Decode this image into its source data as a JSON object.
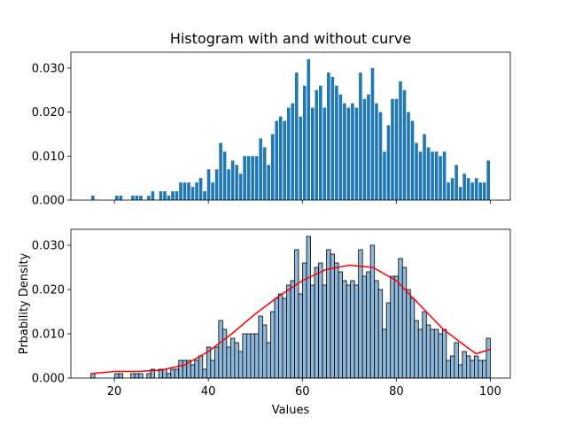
{
  "chart_data": [
    {
      "type": "histogram",
      "title": "Histogram with and without curve",
      "color": "#1f77b4",
      "bins": [
        15,
        15.85,
        16.7,
        17.55,
        18.4,
        19.25,
        20.1,
        20.95,
        21.8,
        22.65,
        23.5,
        24.35,
        25.2,
        26.05,
        26.9,
        27.75,
        28.6,
        29.45,
        30.3,
        31.15,
        32,
        32.85,
        33.7,
        34.55,
        35.4,
        36.25,
        37.1,
        37.95,
        38.8,
        39.65,
        40.5,
        41.35,
        42.2,
        43.05,
        43.9,
        44.75,
        45.6,
        46.45,
        47.3,
        48.15,
        49,
        49.85,
        50.7,
        51.55,
        52.4,
        53.25,
        54.1,
        54.95,
        55.8,
        56.65,
        57.5,
        58.35,
        59.2,
        60.05,
        60.9,
        61.75,
        62.6,
        63.45,
        64.3,
        65.15,
        66,
        66.85,
        67.7,
        68.55,
        69.4,
        70.25,
        71.1,
        71.95,
        72.8,
        73.65,
        74.5,
        75.35,
        76.2,
        77.05,
        77.9,
        78.75,
        79.6,
        80.45,
        81.3,
        82.15,
        83,
        83.85,
        84.7,
        85.55,
        86.4,
        87.25,
        88.1,
        88.95,
        89.8,
        90.65,
        91.5,
        92.35,
        93.2,
        94.05,
        94.9,
        95.75,
        96.6,
        97.45,
        98.3,
        99.15,
        100
      ],
      "values": [
        0.001,
        0,
        0,
        0,
        0,
        0,
        0.001,
        0.001,
        0,
        0,
        0.001,
        0.001,
        0.001,
        0,
        0.001,
        0.002,
        0,
        0.002,
        0.002,
        0.001,
        0.002,
        0.002,
        0.004,
        0.004,
        0.004,
        0.003,
        0.004,
        0.005,
        0.002,
        0.007,
        0.004,
        0.007,
        0.013,
        0.011,
        0.007,
        0.009,
        0.008,
        0.006,
        0.01,
        0.01,
        0.01,
        0.01,
        0.014,
        0.012,
        0.008,
        0.015,
        0.018,
        0.019,
        0.018,
        0.021,
        0.022,
        0.029,
        0.019,
        0.026,
        0.032,
        0.021,
        0.025,
        0.026,
        0.021,
        0.029,
        0.028,
        0.026,
        0.024,
        0.022,
        0.021,
        0.022,
        0.021,
        0.029,
        0.023,
        0.024,
        0.03,
        0.022,
        0.02,
        0.011,
        0.017,
        0.023,
        0.023,
        0.027,
        0.025,
        0.02,
        0.018,
        0.013,
        0.011,
        0.015,
        0.012,
        0.011,
        0.011,
        0.01,
        0.011,
        0.004,
        0.005,
        0.008,
        0.003,
        0.006,
        0.005,
        0.004,
        0.005,
        0.004,
        0.004,
        0.009
      ],
      "xlim": [
        10.75,
        104.25
      ],
      "ylim": [
        0,
        0.0336
      ],
      "yticks": [
        {
          "value": 0,
          "label": "0.000"
        },
        {
          "value": 0.01,
          "label": "0.010"
        },
        {
          "value": 0.02,
          "label": "0.020"
        },
        {
          "value": 0.03,
          "label": "0.030"
        }
      ]
    },
    {
      "type": "histogram",
      "xlabel": "Values",
      "ylabel": "Prbability Density",
      "color": "#8fb9dc",
      "edgecolor": "#000000",
      "bins": [
        15,
        15.85,
        16.7,
        17.55,
        18.4,
        19.25,
        20.1,
        20.95,
        21.8,
        22.65,
        23.5,
        24.35,
        25.2,
        26.05,
        26.9,
        27.75,
        28.6,
        29.45,
        30.3,
        31.15,
        32,
        32.85,
        33.7,
        34.55,
        35.4,
        36.25,
        37.1,
        37.95,
        38.8,
        39.65,
        40.5,
        41.35,
        42.2,
        43.05,
        43.9,
        44.75,
        45.6,
        46.45,
        47.3,
        48.15,
        49,
        49.85,
        50.7,
        51.55,
        52.4,
        53.25,
        54.1,
        54.95,
        55.8,
        56.65,
        57.5,
        58.35,
        59.2,
        60.05,
        60.9,
        61.75,
        62.6,
        63.45,
        64.3,
        65.15,
        66,
        66.85,
        67.7,
        68.55,
        69.4,
        70.25,
        71.1,
        71.95,
        72.8,
        73.65,
        74.5,
        75.35,
        76.2,
        77.05,
        77.9,
        78.75,
        79.6,
        80.45,
        81.3,
        82.15,
        83,
        83.85,
        84.7,
        85.55,
        86.4,
        87.25,
        88.1,
        88.95,
        89.8,
        90.65,
        91.5,
        92.35,
        93.2,
        94.05,
        94.9,
        95.75,
        96.6,
        97.45,
        98.3,
        99.15,
        100
      ],
      "values": [
        0.001,
        0,
        0,
        0,
        0,
        0,
        0.001,
        0.001,
        0,
        0,
        0.001,
        0.001,
        0.001,
        0,
        0.001,
        0.002,
        0,
        0.002,
        0.002,
        0.001,
        0.002,
        0.002,
        0.004,
        0.004,
        0.004,
        0.003,
        0.004,
        0.005,
        0.002,
        0.007,
        0.004,
        0.007,
        0.013,
        0.011,
        0.007,
        0.009,
        0.008,
        0.006,
        0.01,
        0.01,
        0.01,
        0.01,
        0.014,
        0.012,
        0.008,
        0.015,
        0.018,
        0.019,
        0.018,
        0.021,
        0.022,
        0.029,
        0.019,
        0.026,
        0.032,
        0.021,
        0.025,
        0.026,
        0.021,
        0.029,
        0.028,
        0.026,
        0.024,
        0.022,
        0.021,
        0.022,
        0.021,
        0.029,
        0.023,
        0.024,
        0.03,
        0.022,
        0.02,
        0.011,
        0.017,
        0.023,
        0.023,
        0.027,
        0.025,
        0.02,
        0.018,
        0.013,
        0.011,
        0.015,
        0.012,
        0.011,
        0.011,
        0.01,
        0.011,
        0.004,
        0.005,
        0.008,
        0.003,
        0.006,
        0.005,
        0.004,
        0.005,
        0.004,
        0.004,
        0.009
      ],
      "curve": {
        "color": "#ff0000",
        "x": [
          15,
          20,
          25,
          30,
          35,
          40,
          45,
          50,
          55,
          60,
          65,
          70,
          75,
          80,
          85,
          90,
          95,
          97,
          100
        ],
        "y": [
          0.001,
          0.0015,
          0.0015,
          0.0018,
          0.003,
          0.006,
          0.01,
          0.0145,
          0.0185,
          0.022,
          0.0245,
          0.0255,
          0.025,
          0.022,
          0.0165,
          0.011,
          0.007,
          0.0055,
          0.0065
        ]
      },
      "xlim": [
        10.75,
        104.25
      ],
      "ylim": [
        0,
        0.0336
      ],
      "xticks": [
        20,
        40,
        60,
        80,
        100
      ],
      "yticks": [
        {
          "value": 0,
          "label": "0.000"
        },
        {
          "value": 0.01,
          "label": "0.010"
        },
        {
          "value": 0.02,
          "label": "0.020"
        },
        {
          "value": 0.03,
          "label": "0.030"
        }
      ]
    }
  ]
}
